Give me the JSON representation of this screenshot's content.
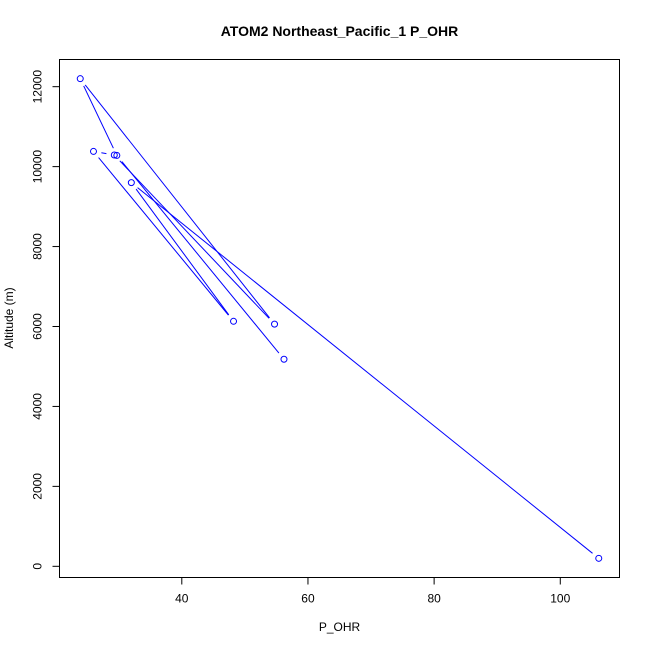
{
  "chart_data": {
    "type": "line",
    "title": "ATOM2 Northeast_Pacific_1 P_OHR",
    "xlabel": "P_OHR",
    "ylabel": "Altitude (m)",
    "xlim": [
      23.9,
      106.1
    ],
    "ylim": [
      200,
      12200
    ],
    "xticks": [
      40,
      60,
      80,
      100
    ],
    "yticks": [
      0,
      2000,
      4000,
      6000,
      8000,
      10000,
      12000
    ],
    "grid": false,
    "color": "#0000ff",
    "series": [
      {
        "markers": "open-circle",
        "x": [
          56.2,
          29.7,
          23.9,
          54.7,
          29.3,
          26.0,
          48.2,
          32.0,
          106.1
        ],
        "y": [
          5180,
          10280,
          12200,
          6060,
          10290,
          10380,
          6130,
          9600,
          200
        ]
      }
    ]
  }
}
